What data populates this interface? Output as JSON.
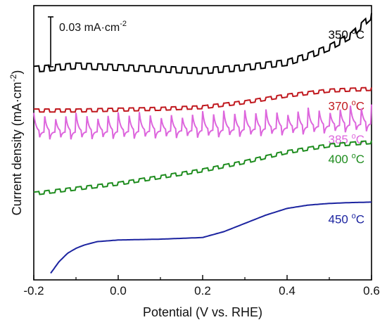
{
  "chart_data": {
    "type": "line",
    "xlabel": "Potential (V vs. RHE)",
    "ylabel_main": "Current density (mA·cm",
    "ylabel_sup": "-2",
    "ylabel_end": ")",
    "xlim": [
      -0.2,
      0.6
    ],
    "x_ticks": [
      -0.2,
      0.0,
      0.2,
      0.4,
      0.6
    ],
    "x_tick_labels": [
      "-0.2",
      "0.0",
      "0.2",
      "0.4",
      "0.6"
    ],
    "y_ticks_labeled": false,
    "grid": false,
    "scale_bar": {
      "value": 0.03,
      "label_main": "0.03 mA·cm",
      "label_sup": "-2"
    },
    "series": [
      {
        "name": "350 °C",
        "label_text": "350 ",
        "label_deg": "o",
        "label_unit": "C",
        "color": "#000000",
        "chopped": true,
        "x": [
          -0.2,
          -0.1,
          0.0,
          0.1,
          0.2,
          0.3,
          0.4,
          0.45,
          0.5,
          0.55,
          0.6
        ],
        "y": [
          0.12,
          0.122,
          0.121,
          0.12,
          0.119,
          0.121,
          0.124,
          0.128,
          0.133,
          0.14,
          0.152
        ],
        "chop_amplitude": 0.0035
      },
      {
        "name": "370 °C",
        "label_text": "370 ",
        "label_deg": "o",
        "label_unit": "C",
        "color": "#c0181e",
        "chopped": true,
        "x": [
          -0.2,
          -0.1,
          0.0,
          0.1,
          0.2,
          0.3,
          0.4,
          0.5,
          0.6
        ],
        "y": [
          0.096,
          0.096,
          0.0965,
          0.097,
          0.098,
          0.101,
          0.105,
          0.108,
          0.109
        ],
        "chop_amplitude": 0.0018
      },
      {
        "name": "385 °C",
        "label_text": "385 ",
        "label_deg": "o",
        "label_unit": "C",
        "color": "#dd66dd",
        "chopped": true,
        "x": [
          -0.2,
          -0.1,
          0.0,
          0.1,
          0.2,
          0.3,
          0.4,
          0.5,
          0.6
        ],
        "y": [
          0.084,
          0.084,
          0.0843,
          0.0846,
          0.085,
          0.0856,
          0.0865,
          0.0877,
          0.089
        ],
        "chop_amplitude": 0.0115
      },
      {
        "name": "400 °C",
        "label_text": "400 ",
        "label_deg": "o",
        "label_unit": "C",
        "color": "#1e8c1e",
        "chopped": true,
        "x": [
          -0.2,
          -0.1,
          0.0,
          0.1,
          0.2,
          0.3,
          0.4,
          0.5,
          0.6
        ],
        "y": [
          0.046,
          0.049,
          0.052,
          0.056,
          0.06,
          0.065,
          0.071,
          0.075,
          0.077
        ],
        "chop_amplitude": 0.0018
      },
      {
        "name": "450 °C",
        "label_text": "450 ",
        "label_deg": "o",
        "label_unit": "C",
        "color": "#1c24a0",
        "chopped": false,
        "x": [
          -0.16,
          -0.14,
          -0.12,
          -0.1,
          -0.08,
          -0.05,
          0.0,
          0.1,
          0.2,
          0.25,
          0.3,
          0.35,
          0.4,
          0.45,
          0.5,
          0.55,
          0.6
        ],
        "y": [
          -0.001,
          0.006,
          0.011,
          0.014,
          0.016,
          0.018,
          0.019,
          0.0195,
          0.0205,
          0.024,
          0.029,
          0.034,
          0.038,
          0.04,
          0.041,
          0.0415,
          0.0418
        ],
        "chop_amplitude": 0
      }
    ]
  }
}
